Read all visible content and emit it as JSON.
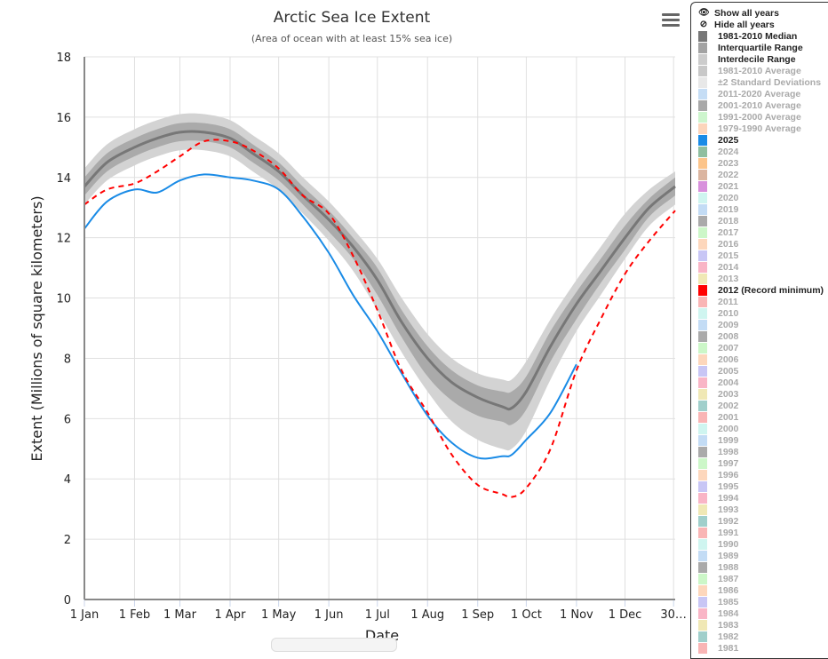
{
  "chart_data": {
    "type": "line",
    "title": "Arctic Sea Ice Extent",
    "subtitle": "(Area of ocean with at least 15% sea ice)",
    "xlabel": "Date",
    "ylabel": "Extent (Millions of square kilometers)",
    "ylim": [
      0,
      18
    ],
    "yticks": [
      0,
      2,
      4,
      6,
      8,
      10,
      12,
      14,
      16,
      18
    ],
    "xlim_day_of_year": [
      1,
      366
    ],
    "xticks": [
      {
        "day": 1,
        "label": "1 Jan"
      },
      {
        "day": 32,
        "label": "1 Feb"
      },
      {
        "day": 60,
        "label": "1 Mar"
      },
      {
        "day": 91,
        "label": "1 Apr"
      },
      {
        "day": 121,
        "label": "1 May"
      },
      {
        "day": 152,
        "label": "1 Jun"
      },
      {
        "day": 182,
        "label": "1 Jul"
      },
      {
        "day": 213,
        "label": "1 Aug"
      },
      {
        "day": 244,
        "label": "1 Sep"
      },
      {
        "day": 274,
        "label": "1 Oct"
      },
      {
        "day": 305,
        "label": "1 Nov"
      },
      {
        "day": 335,
        "label": "1 Dec"
      },
      {
        "day": 365,
        "label": "30…"
      }
    ],
    "grid": true,
    "x_days": [
      1,
      15,
      32,
      46,
      60,
      75,
      91,
      105,
      121,
      136,
      152,
      167,
      182,
      197,
      213,
      228,
      244,
      259,
      265,
      274,
      289,
      305,
      320,
      335,
      350,
      366
    ],
    "series": [
      {
        "name": "1981-2010 Median",
        "color": "#777777",
        "style": "solid",
        "values": [
          13.7,
          14.5,
          15.0,
          15.3,
          15.5,
          15.5,
          15.3,
          14.8,
          14.2,
          13.4,
          12.6,
          11.7,
          10.6,
          9.2,
          8.0,
          7.2,
          6.7,
          6.4,
          6.35,
          6.9,
          8.4,
          9.8,
          10.9,
          12.0,
          13.0,
          13.7
        ]
      },
      {
        "name": "Interquartile Range",
        "type": "band",
        "color": "#aaaaaa",
        "low": [
          13.4,
          14.2,
          14.7,
          15.0,
          15.2,
          15.2,
          15.0,
          14.5,
          13.9,
          13.1,
          12.2,
          11.3,
          10.1,
          8.7,
          7.4,
          6.6,
          6.1,
          5.9,
          5.8,
          6.3,
          7.9,
          9.3,
          10.5,
          11.6,
          12.7,
          13.4
        ],
        "high": [
          14.0,
          14.8,
          15.3,
          15.6,
          15.8,
          15.8,
          15.6,
          15.1,
          14.5,
          13.7,
          12.9,
          12.0,
          11.0,
          9.6,
          8.4,
          7.6,
          7.1,
          6.9,
          6.9,
          7.4,
          8.9,
          10.2,
          11.3,
          12.4,
          13.3,
          14.0
        ]
      },
      {
        "name": "Interdecile Range",
        "type": "band",
        "color": "#d3d3d3",
        "low": [
          13.1,
          13.9,
          14.4,
          14.7,
          14.9,
          14.9,
          14.7,
          14.2,
          13.6,
          12.8,
          11.9,
          10.9,
          9.6,
          8.2,
          6.9,
          5.9,
          5.3,
          5.0,
          5.0,
          5.6,
          7.3,
          8.9,
          10.1,
          11.3,
          12.4,
          13.1
        ],
        "high": [
          14.3,
          15.1,
          15.6,
          15.9,
          16.1,
          16.1,
          15.9,
          15.4,
          14.8,
          14.0,
          13.2,
          12.3,
          11.3,
          10.0,
          8.8,
          8.0,
          7.5,
          7.3,
          7.3,
          7.9,
          9.3,
          10.6,
          11.7,
          12.8,
          13.6,
          14.2
        ]
      },
      {
        "name": "2025",
        "color": "#1a8be6",
        "style": "solid",
        "values": [
          12.3,
          13.2,
          13.6,
          13.5,
          13.9,
          14.1,
          14.0,
          13.9,
          13.6,
          12.7,
          11.5,
          10.1,
          8.9,
          7.5,
          6.1,
          5.2,
          4.7,
          4.75,
          4.8,
          5.3,
          6.2,
          7.8,
          null,
          null,
          null,
          null
        ]
      },
      {
        "name": "2012 (Record minimum)",
        "color": "#ff0000",
        "style": "dashed",
        "values": [
          13.1,
          13.6,
          13.8,
          14.2,
          14.7,
          15.2,
          15.2,
          14.9,
          14.3,
          13.4,
          12.8,
          11.4,
          9.6,
          7.6,
          6.2,
          4.8,
          3.8,
          3.5,
          3.4,
          3.7,
          5.0,
          7.6,
          9.3,
          10.8,
          11.9,
          12.9
        ]
      }
    ]
  },
  "legend": {
    "show_all": "Show all years",
    "hide_all": "Hide all years",
    "items": [
      {
        "label": "1981-2010 Median",
        "color": "#777777",
        "on": true
      },
      {
        "label": "Interquartile Range",
        "color": "#a3a3a3",
        "on": true
      },
      {
        "label": "Interdecile Range",
        "color": "#cccccc",
        "on": true
      },
      {
        "label": "1981-2010 Average",
        "color": "#c8c8c8",
        "on": false
      },
      {
        "label": "±2 Standard Deviations",
        "color": "#e8e8e8",
        "on": false
      },
      {
        "label": "2011-2020 Average",
        "color": "#c5ddf5",
        "on": false
      },
      {
        "label": "2001-2010 Average",
        "color": "#a8a8a8",
        "on": false
      },
      {
        "label": "1991-2000 Average",
        "color": "#cdf5cd",
        "on": false
      },
      {
        "label": "1979-1990 Average",
        "color": "#fcd5bb",
        "on": false
      },
      {
        "label": "2025",
        "color": "#1a8be6",
        "on": true
      },
      {
        "label": "2024",
        "color": "#8fbfa0",
        "on": false
      },
      {
        "label": "2023",
        "color": "#fcc48a",
        "on": false
      },
      {
        "label": "2022",
        "color": "#dbb5a0",
        "on": false
      },
      {
        "label": "2021",
        "color": "#d890dc",
        "on": false
      },
      {
        "label": "2020",
        "color": "#cff5f0",
        "on": false
      },
      {
        "label": "2019",
        "color": "#c3dcf5",
        "on": false
      },
      {
        "label": "2018",
        "color": "#aaaaaa",
        "on": false
      },
      {
        "label": "2017",
        "color": "#ccf7c8",
        "on": false
      },
      {
        "label": "2016",
        "color": "#fdd7bc",
        "on": false
      },
      {
        "label": "2015",
        "color": "#c8c6f5",
        "on": false
      },
      {
        "label": "2014",
        "color": "#f9b5c6",
        "on": false
      },
      {
        "label": "2013",
        "color": "#f0e8b5",
        "on": false
      },
      {
        "label": "2012 (Record minimum)",
        "color": "#ff0000",
        "on": true
      },
      {
        "label": "2011",
        "color": "#f9b5b5",
        "on": false
      },
      {
        "label": "2010",
        "color": "#cff5f0",
        "on": false
      },
      {
        "label": "2009",
        "color": "#c3dcf5",
        "on": false
      },
      {
        "label": "2008",
        "color": "#aaaaaa",
        "on": false
      },
      {
        "label": "2007",
        "color": "#ccf7c8",
        "on": false
      },
      {
        "label": "2006",
        "color": "#fdd7bc",
        "on": false
      },
      {
        "label": "2005",
        "color": "#c8c6f5",
        "on": false
      },
      {
        "label": "2004",
        "color": "#f9b5c6",
        "on": false
      },
      {
        "label": "2003",
        "color": "#f0e8b5",
        "on": false
      },
      {
        "label": "2002",
        "color": "#a0cfcb",
        "on": false
      },
      {
        "label": "2001",
        "color": "#f9b5b5",
        "on": false
      },
      {
        "label": "2000",
        "color": "#cff5f0",
        "on": false
      },
      {
        "label": "1999",
        "color": "#c3dcf5",
        "on": false
      },
      {
        "label": "1998",
        "color": "#aaaaaa",
        "on": false
      },
      {
        "label": "1997",
        "color": "#ccf7c8",
        "on": false
      },
      {
        "label": "1996",
        "color": "#fdd7bc",
        "on": false
      },
      {
        "label": "1995",
        "color": "#c8c6f5",
        "on": false
      },
      {
        "label": "1994",
        "color": "#f9b5c6",
        "on": false
      },
      {
        "label": "1993",
        "color": "#f0e8b5",
        "on": false
      },
      {
        "label": "1992",
        "color": "#a0cfcb",
        "on": false
      },
      {
        "label": "1991",
        "color": "#f9b5b5",
        "on": false
      },
      {
        "label": "1990",
        "color": "#cff5f0",
        "on": false
      },
      {
        "label": "1989",
        "color": "#c3dcf5",
        "on": false
      },
      {
        "label": "1988",
        "color": "#aaaaaa",
        "on": false
      },
      {
        "label": "1987",
        "color": "#ccf7c8",
        "on": false
      },
      {
        "label": "1986",
        "color": "#fdd7bc",
        "on": false
      },
      {
        "label": "1985",
        "color": "#c8c6f5",
        "on": false
      },
      {
        "label": "1984",
        "color": "#f9b5c6",
        "on": false
      },
      {
        "label": "1983",
        "color": "#f0e8b5",
        "on": false
      },
      {
        "label": "1982",
        "color": "#a0cfcb",
        "on": false
      },
      {
        "label": "1981",
        "color": "#f9b5b5",
        "on": false
      }
    ]
  },
  "icons": {
    "menu": "hamburger-menu-icon",
    "show": "eye-icon",
    "hide": "eye-slash-icon"
  }
}
